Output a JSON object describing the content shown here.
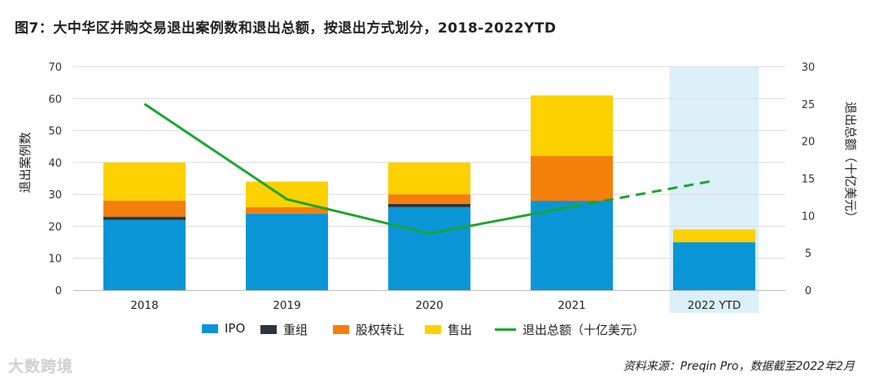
{
  "title": "图7：大中华区并购交易退出案例数和退出总额，按退出方式划分，2018-2022YTD",
  "chart_data": {
    "type": "bar",
    "stacked": true,
    "categories": [
      "2018",
      "2019",
      "2020",
      "2021",
      "2022 YTD"
    ],
    "highlight_category": "2022 YTD",
    "series": [
      {
        "name": "IPO",
        "color": "#0a96d6",
        "values": [
          22,
          24,
          26,
          28,
          15
        ]
      },
      {
        "name": "重组",
        "color": "#2a3741",
        "values": [
          1,
          0,
          1,
          0,
          0
        ]
      },
      {
        "name": "股权转让",
        "color": "#f47f0b",
        "values": [
          5,
          2,
          3,
          14,
          0
        ]
      },
      {
        "name": "售出",
        "color": "#fdd000",
        "values": [
          12,
          8,
          10,
          19,
          4
        ]
      }
    ],
    "line_series": {
      "name": "退出总额（十亿美元）",
      "color": "#1aa52d",
      "axis": "right",
      "values": [
        25,
        12.2,
        7.6,
        11.2,
        14.7
      ],
      "dashed_from_index": 3
    },
    "ylabel_left": "退出案例数",
    "ylabel_right": "退出总额（十亿美元）",
    "ylim_left": [
      0,
      70
    ],
    "yticks_left": [
      0,
      10,
      20,
      30,
      40,
      50,
      60,
      70
    ],
    "ylim_right": [
      0,
      30
    ],
    "yticks_right": [
      0,
      5,
      10,
      15,
      20,
      25,
      30
    ],
    "grid": true,
    "legend": "bottom"
  },
  "source": "资料来源：Preqin Pro，数据截至2022年2月",
  "watermark": "大数跨境"
}
